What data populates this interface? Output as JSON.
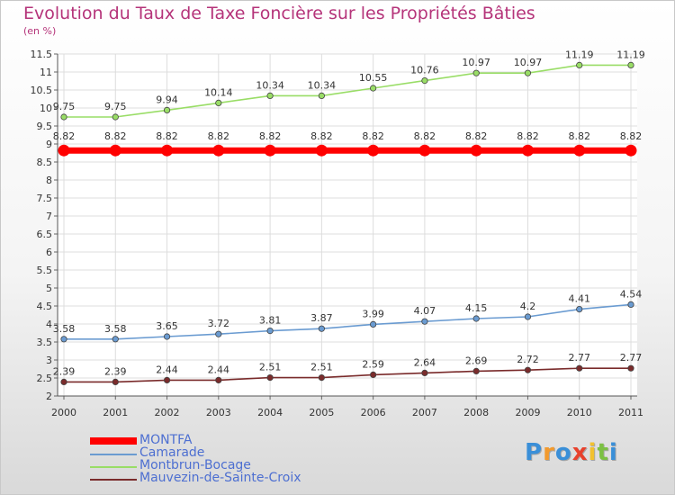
{
  "chart_data": {
    "type": "line",
    "title": "Evolution du Taux de Taxe Foncière sur les Propriétés Bâties",
    "ylabel": "(en %)",
    "xlabel": "",
    "x": [
      "2000",
      "2001",
      "2002",
      "2003",
      "2004",
      "2005",
      "2006",
      "2007",
      "2008",
      "2009",
      "2010",
      "2011"
    ],
    "ylim": [
      2,
      11.5
    ],
    "yticks": [
      "2",
      "2.5",
      "3",
      "3.5",
      "4",
      "4.5",
      "5",
      "5.5",
      "6",
      "6.5",
      "7",
      "7.5",
      "8",
      "8.5",
      "9",
      "9.5",
      "10",
      "10.5",
      "11",
      "11.5"
    ],
    "grid": true,
    "legend_position": "bottom-left",
    "series": [
      {
        "name": "MONTFA",
        "color": "#ff0000",
        "values": [
          8.82,
          8.82,
          8.82,
          8.82,
          8.82,
          8.82,
          8.82,
          8.82,
          8.82,
          8.82,
          8.82,
          8.82
        ],
        "labels": [
          "8.82",
          "8.82",
          "8.82",
          "8.82",
          "8.82",
          "8.82",
          "8.82",
          "8.82",
          "8.82",
          "8.82",
          "8.82",
          "8.82"
        ]
      },
      {
        "name": "Camarade",
        "color": "#6a9bd1",
        "values": [
          3.58,
          3.58,
          3.65,
          3.72,
          3.81,
          3.87,
          3.99,
          4.07,
          4.15,
          4.2,
          4.41,
          4.54
        ],
        "labels": [
          "3.58",
          "3.58",
          "3.65",
          "3.72",
          "3.81",
          "3.87",
          "3.99",
          "4.07",
          "4.15",
          "4.2",
          "4.41",
          "4.54"
        ]
      },
      {
        "name": "Montbrun-Bocage",
        "color": "#99dd66",
        "values": [
          9.75,
          9.75,
          9.94,
          10.14,
          10.34,
          10.34,
          10.55,
          10.76,
          10.97,
          10.97,
          11.19,
          11.19
        ],
        "labels": [
          "9.75",
          "9.75",
          "9.94",
          "10.14",
          "10.34",
          "10.34",
          "10.55",
          "10.76",
          "10.97",
          "10.97",
          "11.19",
          "11.19"
        ]
      },
      {
        "name": "Mauvezin-de-Sainte-Croix",
        "color": "#7a2b2b",
        "values": [
          2.39,
          2.39,
          2.44,
          2.44,
          2.51,
          2.51,
          2.59,
          2.64,
          2.69,
          2.72,
          2.77,
          2.77
        ],
        "labels": [
          "2.39",
          "2.39",
          "2.44",
          "2.44",
          "2.51",
          "2.51",
          "2.59",
          "2.64",
          "2.69",
          "2.72",
          "2.77",
          "2.77"
        ]
      }
    ]
  },
  "brand": {
    "letters": [
      "P",
      "r",
      "o",
      "x",
      "i",
      "t",
      "i"
    ],
    "colors": [
      "#3a8fd8",
      "#f29a2e",
      "#3a8fd8",
      "#e8412c",
      "#f2c12e",
      "#7cc043",
      "#3a8fd8"
    ]
  }
}
